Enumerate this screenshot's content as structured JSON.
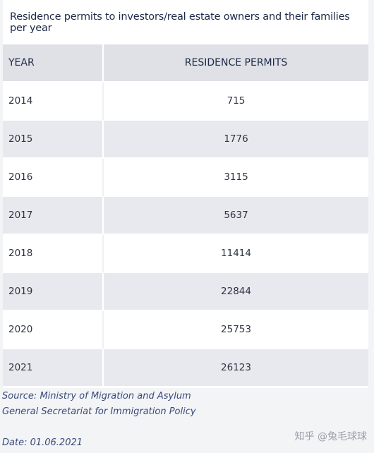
{
  "title": "Residence permits to investors/real estate owners and their families per year",
  "headers": {
    "year": "YEAR",
    "permits": "RESIDENCE PERMITS"
  },
  "rows": [
    {
      "year": "2014",
      "permits": "715"
    },
    {
      "year": "2015",
      "permits": "1776"
    },
    {
      "year": "2016",
      "permits": "3115"
    },
    {
      "year": "2017",
      "permits": "5637"
    },
    {
      "year": "2018",
      "permits": "11414"
    },
    {
      "year": "2019",
      "permits": "22844"
    },
    {
      "year": "2020",
      "permits": "25753"
    },
    {
      "year": "2021",
      "permits": "26123"
    }
  ],
  "source": {
    "line1": "Source: Ministry of Migration and Asylum",
    "line2": "General Secretariat for Immigration Policy"
  },
  "date": "Date: 01.06.2021",
  "watermark": "知乎 @兔毛球球"
}
